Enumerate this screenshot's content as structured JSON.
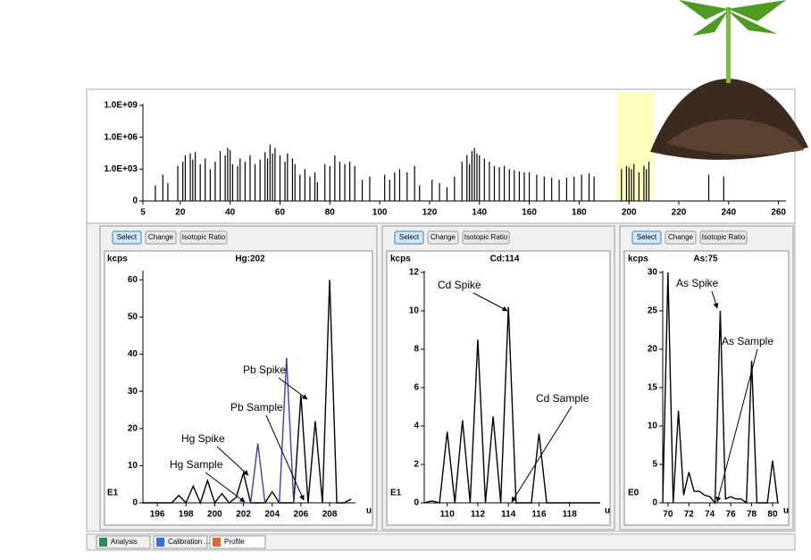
{
  "chart_data": [
    {
      "type": "bar",
      "log_scale": true,
      "color": "#000000",
      "highlight_color": "#ffffc0",
      "highlight_range": [
        195,
        210
      ],
      "x": [
        10,
        13,
        15,
        19,
        21,
        22,
        24,
        25,
        26,
        28,
        30,
        32,
        34,
        36,
        38,
        39,
        40,
        41,
        43,
        44,
        46,
        48,
        50,
        52,
        54,
        55,
        56,
        57,
        58,
        60,
        62,
        63,
        65,
        66,
        68,
        70,
        72,
        74,
        75,
        78,
        80,
        82,
        84,
        86,
        88,
        90,
        93,
        96,
        102,
        104,
        106,
        108,
        111,
        114,
        116,
        121,
        124,
        127,
        130,
        133,
        135,
        136,
        137,
        138,
        139,
        140,
        142,
        144,
        146,
        148,
        150,
        152,
        154,
        156,
        158,
        160,
        163,
        166,
        169,
        172,
        175,
        178,
        181,
        184,
        186,
        197,
        199,
        200,
        201,
        202,
        204,
        206,
        207,
        208,
        232,
        238
      ],
      "values": [
        30,
        300,
        50,
        2000,
        5000,
        20000,
        30000,
        8000,
        40000,
        3000,
        10000,
        1000,
        5000,
        50000,
        20000,
        100000,
        60000,
        3000,
        2000,
        10000,
        5000,
        20000,
        3000,
        8000,
        40000,
        10000,
        200000,
        30000,
        100000,
        20000,
        5000,
        30000,
        10000,
        3000,
        300,
        1000,
        200,
        500,
        60,
        3000,
        2000,
        20000,
        5000,
        3000,
        5000,
        2000,
        100,
        200,
        300,
        100,
        500,
        1000,
        500,
        2000,
        30,
        100,
        50,
        20,
        200,
        5000,
        20000,
        3000,
        50000,
        100000,
        30000,
        20000,
        10000,
        5000,
        2000,
        1500,
        2000,
        1000,
        800,
        600,
        500,
        500,
        300,
        200,
        150,
        100,
        150,
        200,
        300,
        400,
        200,
        1000,
        2000,
        1500,
        1000,
        3000,
        500,
        2000,
        1000,
        5000,
        300,
        200
      ],
      "xlim": [
        5,
        263
      ],
      "ylim": [
        1,
        1000000000
      ],
      "xticks": [
        5,
        20,
        40,
        60,
        80,
        100,
        120,
        140,
        160,
        180,
        200,
        220,
        240,
        260
      ],
      "yticks": [
        {
          "value": 1,
          "label": "0"
        },
        {
          "value": 1000,
          "label": "1.0E+03"
        },
        {
          "value": 1000000,
          "label": "1.0E+06"
        },
        {
          "value": 1000000000,
          "label": "1.0E+09"
        }
      ]
    },
    {
      "type": "line",
      "title": "Hg:202",
      "y_label": "kcps",
      "exponent_label": "E1",
      "x_unit": "u",
      "x": [
        195,
        195.5,
        196,
        196.5,
        197,
        197.5,
        198,
        198.5,
        199,
        199.5,
        200,
        200.5,
        201,
        201.5,
        202,
        202.5,
        203,
        203.5,
        204,
        204.5,
        205,
        205.5,
        206,
        206.5,
        207,
        207.5,
        208,
        208.5,
        209,
        209.5
      ],
      "series": [
        {
          "color": "#000000",
          "values": [
            0,
            0,
            0,
            0,
            0,
            2,
            0,
            4.5,
            0,
            6,
            0,
            2.5,
            0,
            1.5,
            8,
            0,
            0,
            0,
            3,
            0,
            0,
            0,
            29,
            0,
            22,
            0,
            60,
            0,
            0,
            1
          ]
        },
        {
          "color": "#3a3adc",
          "values": [
            null,
            null,
            null,
            null,
            null,
            null,
            null,
            null,
            null,
            null,
            null,
            null,
            null,
            null,
            null,
            0,
            16,
            0,
            null,
            0,
            39,
            0,
            null,
            null,
            null,
            null,
            null,
            null,
            null,
            null
          ]
        }
      ],
      "xlim": [
        195,
        209.8
      ],
      "ylim": [
        0,
        62
      ],
      "xticks": [
        196,
        198,
        200,
        202,
        204,
        206,
        208
      ],
      "yticks": [
        0,
        10,
        20,
        30,
        40,
        50,
        60
      ],
      "annotations": [
        "Pb Spike",
        "Pb Sample",
        "Hg Spike",
        "Hg Sample"
      ]
    },
    {
      "type": "line",
      "title": "Cd:114",
      "y_label": "kcps",
      "exponent_label": "E1",
      "x_unit": "u",
      "x": [
        108.5,
        109,
        109.5,
        110,
        110.5,
        111,
        111.5,
        112,
        112.5,
        113,
        113.5,
        114,
        114.5,
        115,
        115.5,
        116,
        116.5,
        117,
        117.5,
        118,
        118.5,
        119,
        119.5,
        120
      ],
      "series": [
        {
          "color": "#000000",
          "values": [
            0,
            0.1,
            0,
            3.7,
            0,
            4.3,
            0,
            8.5,
            0,
            4.5,
            0,
            10.2,
            0,
            0,
            0,
            3.6,
            0,
            0,
            0,
            0,
            0,
            0,
            0,
            0
          ]
        }
      ],
      "xlim": [
        108.5,
        120
      ],
      "ylim": [
        0,
        12
      ],
      "xticks": [
        110,
        112,
        114,
        116,
        118
      ],
      "yticks": [
        0,
        2,
        4,
        6,
        8,
        10,
        12
      ],
      "annotations": [
        "Cd Spike",
        "Cd Sample"
      ]
    },
    {
      "type": "line",
      "title": "As:75",
      "y_label": "kcps",
      "exponent_label": "E0",
      "x_unit": "u",
      "x": [
        69.5,
        70,
        70.5,
        71,
        71.5,
        72,
        72.5,
        73,
        73.5,
        74,
        74.5,
        75,
        75.5,
        76,
        76.5,
        77,
        77.5,
        78,
        78.5,
        79,
        79.5,
        80,
        80.5
      ],
      "series": [
        {
          "color": "#000000",
          "values": [
            0,
            30,
            0,
            12,
            1,
            4,
            1.5,
            1.5,
            1,
            0.8,
            0,
            25,
            0.5,
            0.8,
            0.5,
            0.5,
            0,
            18.5,
            0,
            0,
            0,
            5.5,
            0
          ]
        }
      ],
      "xlim": [
        69.5,
        80.6
      ],
      "ylim": [
        0,
        30
      ],
      "xticks": [
        70,
        72,
        74,
        76,
        78,
        80
      ],
      "yticks": [
        0,
        5,
        10,
        15,
        20,
        25,
        30
      ],
      "annotations": [
        "As Spike",
        "As Sample"
      ]
    }
  ],
  "panels": [
    {
      "buttons": [
        "Select",
        "Change",
        "Isotopic Ratio"
      ]
    },
    {
      "buttons": [
        "Select",
        "Change",
        "Isotopic Ratio"
      ]
    },
    {
      "buttons": [
        "Select",
        "Change",
        "Isotopic Ratio"
      ]
    }
  ],
  "tabs": [
    "Analysis",
    "Calibration ...",
    "Profile"
  ]
}
